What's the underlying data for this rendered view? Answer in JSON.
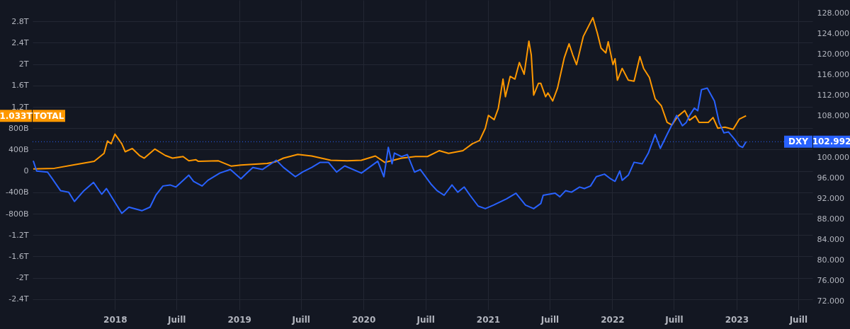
{
  "chart_data": {
    "type": "line",
    "grid": true,
    "marker": "none",
    "line_style": "solid",
    "xlim": [
      "2017-05-04",
      "2023-08-12"
    ],
    "xticks": [
      {
        "value": "2018-01-01",
        "label": "2018"
      },
      {
        "value": "2018-07-01",
        "label": "Juill"
      },
      {
        "value": "2019-01-01",
        "label": "2019"
      },
      {
        "value": "2019-07-01",
        "label": "Juill"
      },
      {
        "value": "2020-01-01",
        "label": "2020"
      },
      {
        "value": "2020-07-01",
        "label": "Juill"
      },
      {
        "value": "2021-01-01",
        "label": "2021"
      },
      {
        "value": "2021-07-01",
        "label": "Juill"
      },
      {
        "value": "2022-01-01",
        "label": "2022"
      },
      {
        "value": "2022-07-01",
        "label": "Juill"
      },
      {
        "value": "2023-01-01",
        "label": "2023"
      },
      {
        "value": "2023-07-01",
        "label": "Juill"
      }
    ],
    "ylim": [
      -2600000000000.0,
      3200000000000.0
    ],
    "yticks": [
      {
        "value": -2400000000000.0,
        "label": "-2.4T"
      },
      {
        "value": -2000000000000.0,
        "label": "-2T"
      },
      {
        "value": -1600000000000.0,
        "label": "-1.6T"
      },
      {
        "value": -1200000000000.0,
        "label": "-1.2T"
      },
      {
        "value": -800000000000.0,
        "label": "-800B"
      },
      {
        "value": -400000000000.0,
        "label": "-400B"
      },
      0,
      {
        "value": 400000000000.0,
        "label": "400B"
      },
      {
        "value": 800000000000.0,
        "label": "800B"
      },
      {
        "value": 1200000000000.0,
        "label": "1.2T"
      },
      {
        "value": 1600000000000.0,
        "label": "1.6T"
      },
      {
        "value": 2000000000000.0,
        "label": "2T"
      },
      {
        "value": 2400000000000.0,
        "label": "2.4T"
      },
      {
        "value": 2800000000000.0,
        "label": "2.8T"
      }
    ],
    "y2lim": [
      70.35,
      130.5
    ],
    "y2ticks": [
      {
        "value": 72,
        "label": "72.000"
      },
      {
        "value": 76,
        "label": "76.000"
      },
      {
        "value": 80,
        "label": "80.000"
      },
      {
        "value": 84,
        "label": "84.000"
      },
      {
        "value": 88,
        "label": "88.000"
      },
      {
        "value": 92,
        "label": "92.000"
      },
      {
        "value": 96,
        "label": "96.000"
      },
      {
        "value": 100,
        "label": "100.000"
      },
      {
        "value": 108,
        "label": "108.000"
      },
      {
        "value": 112,
        "label": "112.000"
      },
      {
        "value": 116,
        "label": "116.000"
      },
      {
        "value": 120,
        "label": "120.000"
      },
      {
        "value": 124,
        "label": "124.000"
      },
      {
        "value": 128,
        "label": "128.000"
      }
    ],
    "series": [
      {
        "name": "TOTAL",
        "color": "#ff9800",
        "axis": "y",
        "x": [
          "2017-05-06",
          "2017-07-07",
          "2017-09-08",
          "2017-11-01",
          "2017-11-30",
          "2017-12-10",
          "2017-12-21",
          "2018-01-01",
          "2018-01-11",
          "2018-01-21",
          "2018-01-31",
          "2018-02-21",
          "2018-03-14",
          "2018-03-28",
          "2018-04-28",
          "2018-05-29",
          "2018-06-19",
          "2018-07-20",
          "2018-08-06",
          "2018-08-27",
          "2018-09-03",
          "2018-11-01",
          "2018-12-09",
          "2019-01-06",
          "2019-03-24",
          "2019-04-17",
          "2019-05-11",
          "2019-06-22",
          "2019-08-02",
          "2019-09-27",
          "2019-11-14",
          "2019-12-26",
          "2020-02-05",
          "2020-03-04",
          "2020-04-22",
          "2020-06-02",
          "2020-07-07",
          "2020-08-11",
          "2020-09-07",
          "2020-10-19",
          "2020-11-16",
          "2020-12-07",
          "2020-12-24",
          "2021-01-02",
          "2021-01-19",
          "2021-01-31",
          "2021-02-14",
          "2021-02-21",
          "2021-03-07",
          "2021-03-21",
          "2021-04-03",
          "2021-04-17",
          "2021-05-01",
          "2021-05-08",
          "2021-05-15",
          "2021-05-29",
          "2021-06-05",
          "2021-06-19",
          "2021-06-26",
          "2021-07-10",
          "2021-07-24",
          "2021-08-13",
          "2021-08-27",
          "2021-09-07",
          "2021-09-18",
          "2021-10-08",
          "2021-11-05",
          "2021-11-18",
          "2021-11-29",
          "2021-12-13",
          "2021-12-20",
          "2022-01-03",
          "2022-01-09",
          "2022-01-16",
          "2022-01-30",
          "2022-02-17",
          "2022-03-06",
          "2022-03-23",
          "2022-04-03",
          "2022-04-20",
          "2022-05-07",
          "2022-05-25",
          "2022-06-11",
          "2022-06-25",
          "2022-07-12",
          "2022-08-02",
          "2022-08-16",
          "2022-09-02",
          "2022-09-13",
          "2022-10-10",
          "2022-10-24",
          "2022-11-07",
          "2022-11-28",
          "2022-12-22",
          "2023-01-09",
          "2023-01-29"
        ],
        "values": [
          40000000000.0,
          50000000000.0,
          120000000000.0,
          180000000000.0,
          330000000000.0,
          560000000000.0,
          510000000000.0,
          690000000000.0,
          600000000000.0,
          510000000000.0,
          360000000000.0,
          420000000000.0,
          290000000000.0,
          240000000000.0,
          410000000000.0,
          290000000000.0,
          240000000000.0,
          270000000000.0,
          190000000000.0,
          210000000000.0,
          180000000000.0,
          190000000000.0,
          90000000000.0,
          110000000000.0,
          140000000000.0,
          170000000000.0,
          240000000000.0,
          310000000000.0,
          280000000000.0,
          200000000000.0,
          190000000000.0,
          200000000000.0,
          280000000000.0,
          160000000000.0,
          240000000000.0,
          270000000000.0,
          270000000000.0,
          380000000000.0,
          330000000000.0,
          380000000000.0,
          510000000000.0,
          570000000000.0,
          800000000000.0,
          1040000000000.0,
          960000000000.0,
          1170000000000.0,
          1720000000000.0,
          1390000000000.0,
          1770000000000.0,
          1720000000000.0,
          2030000000000.0,
          1810000000000.0,
          2430000000000.0,
          2170000000000.0,
          1420000000000.0,
          1640000000000.0,
          1640000000000.0,
          1390000000000.0,
          1460000000000.0,
          1310000000000.0,
          1550000000000.0,
          2120000000000.0,
          2380000000000.0,
          2170000000000.0,
          1990000000000.0,
          2520000000000.0,
          2870000000000.0,
          2580000000000.0,
          2300000000000.0,
          2210000000000.0,
          2420000000000.0,
          1990000000000.0,
          2100000000000.0,
          1700000000000.0,
          1920000000000.0,
          1700000000000.0,
          1680000000000.0,
          2140000000000.0,
          1920000000000.0,
          1750000000000.0,
          1350000000000.0,
          1220000000000.0,
          910000000000.0,
          860000000000.0,
          1020000000000.0,
          1130000000000.0,
          950000000000.0,
          1030000000000.0,
          910000000000.0,
          910000000000.0,
          1000000000000.0,
          800000000000.0,
          820000000000.0,
          780000000000.0,
          970000000000.0,
          1033000000000.0
        ]
      },
      {
        "name": "DXY",
        "color": "#2962ff",
        "axis": "y2",
        "x": [
          "2017-05-06",
          "2017-05-16",
          "2017-06-17",
          "2017-07-01",
          "2017-07-25",
          "2017-08-18",
          "2017-09-04",
          "2017-10-02",
          "2017-10-30",
          "2017-11-23",
          "2017-12-07",
          "2018-01-21",
          "2018-02-11",
          "2018-03-21",
          "2018-04-14",
          "2018-05-01",
          "2018-05-22",
          "2018-06-12",
          "2018-06-29",
          "2018-08-06",
          "2018-08-20",
          "2018-09-14",
          "2018-10-01",
          "2018-11-05",
          "2018-12-06",
          "2019-01-06",
          "2019-01-23",
          "2019-02-10",
          "2019-03-10",
          "2019-04-20",
          "2019-05-11",
          "2019-06-15",
          "2019-07-06",
          "2019-08-02",
          "2019-08-27",
          "2019-09-20",
          "2019-10-14",
          "2019-11-07",
          "2019-12-26",
          "2020-02-12",
          "2020-03-01",
          "2020-03-14",
          "2020-03-25",
          "2020-04-01",
          "2020-04-22",
          "2020-05-09",
          "2020-05-30",
          "2020-06-16",
          "2020-07-17",
          "2020-08-04",
          "2020-08-25",
          "2020-09-17",
          "2020-10-04",
          "2020-10-23",
          "2020-11-09",
          "2020-12-03",
          "2020-12-24",
          "2021-01-17",
          "2021-02-24",
          "2021-03-24",
          "2021-04-21",
          "2021-05-15",
          "2021-06-05",
          "2021-06-12",
          "2021-07-17",
          "2021-07-31",
          "2021-08-17",
          "2021-09-03",
          "2021-09-27",
          "2021-10-11",
          "2021-10-29",
          "2021-11-15",
          "2021-12-09",
          "2021-12-27",
          "2022-01-09",
          "2022-01-23",
          "2022-01-30",
          "2022-02-17",
          "2022-03-06",
          "2022-03-30",
          "2022-04-17",
          "2022-05-07",
          "2022-05-22",
          "2022-06-11",
          "2022-07-09",
          "2022-07-26",
          "2022-08-06",
          "2022-08-16",
          "2022-08-30",
          "2022-09-09",
          "2022-09-20",
          "2022-10-07",
          "2022-10-28",
          "2022-11-11",
          "2022-11-25",
          "2022-12-08",
          "2022-12-26",
          "2023-01-09",
          "2023-01-19",
          "2023-01-29"
        ],
        "values": [
          99.3,
          97.3,
          97.1,
          95.8,
          93.5,
          93.2,
          91.4,
          93.5,
          95.1,
          92.8,
          93.9,
          89.1,
          90.3,
          89.6,
          90.3,
          92.6,
          94.4,
          94.6,
          94.2,
          96.5,
          95.3,
          94.4,
          95.5,
          96.9,
          97.6,
          95.8,
          96.9,
          98.0,
          97.6,
          99.4,
          98.0,
          96.2,
          97.1,
          98.0,
          99.0,
          99.0,
          97.1,
          98.3,
          96.9,
          99.2,
          96.2,
          101.9,
          98.7,
          100.8,
          100.1,
          100.5,
          97.1,
          97.6,
          94.8,
          93.5,
          92.6,
          94.6,
          93.2,
          94.2,
          92.6,
          90.5,
          90.0,
          90.7,
          91.9,
          93.0,
          90.7,
          90.0,
          91.0,
          92.6,
          93.0,
          92.3,
          93.5,
          93.2,
          94.2,
          93.9,
          94.4,
          96.2,
          96.7,
          95.8,
          95.3,
          97.3,
          95.5,
          96.5,
          99.0,
          98.7,
          100.8,
          104.4,
          101.7,
          104.4,
          108.1,
          106.1,
          106.7,
          108.1,
          109.5,
          109.0,
          113.1,
          113.4,
          110.9,
          106.7,
          104.7,
          104.9,
          103.5,
          102.2,
          101.9,
          102.992
        ]
      }
    ],
    "ref_lines": [
      {
        "axis": "y2",
        "value": 102.992,
        "label": "102.992",
        "color": "#2962ff",
        "line_style": "dotted"
      }
    ],
    "annotations": [
      "1.033T"
    ]
  }
}
